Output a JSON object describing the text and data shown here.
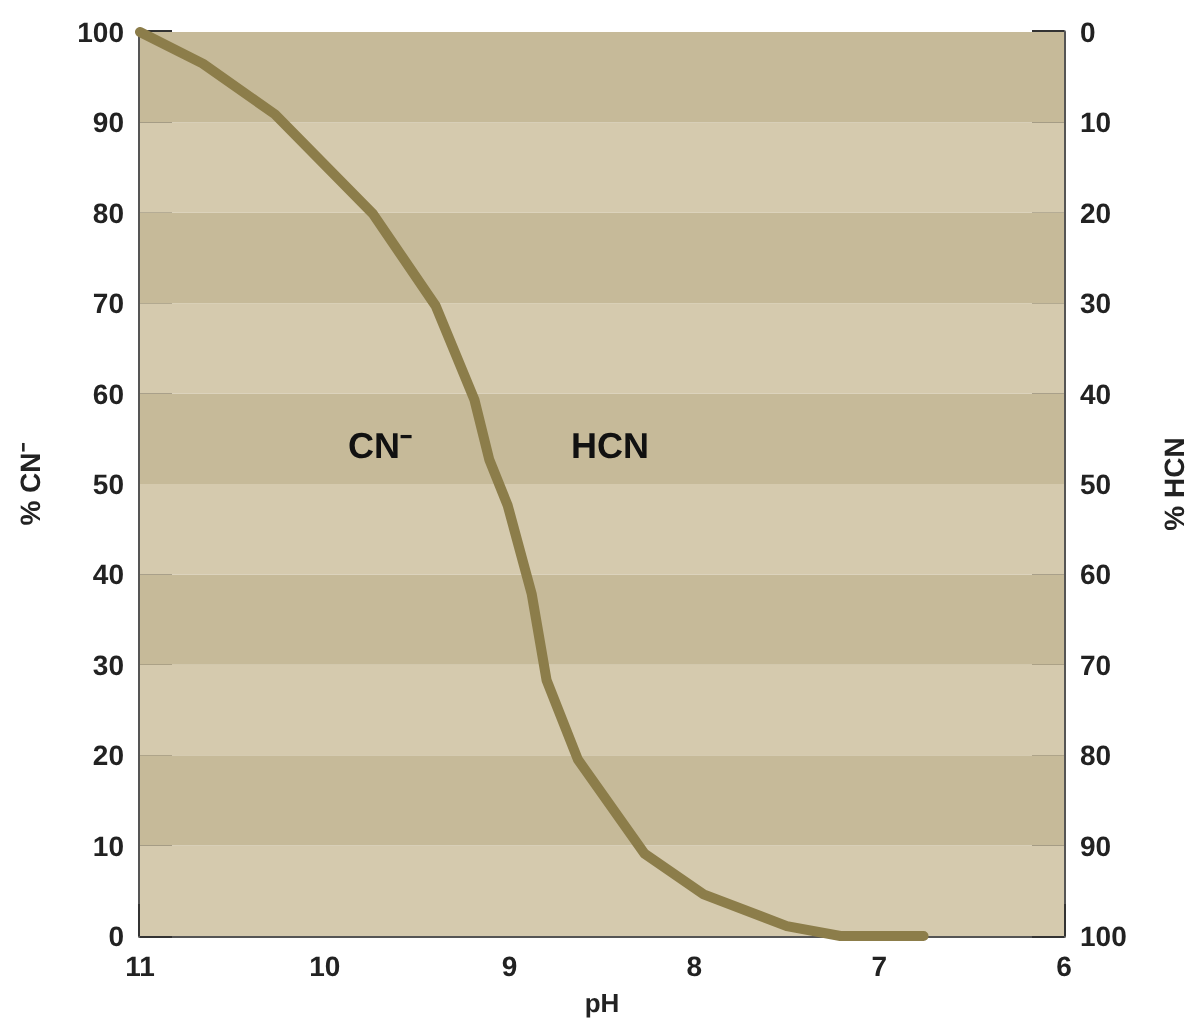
{
  "chart_data": {
    "type": "line",
    "xlabel": "pH",
    "ylabel": "% CN⁻",
    "y2label": "% HCN",
    "xlim": [
      11,
      6
    ],
    "xticks": [
      11,
      10,
      9,
      8,
      7,
      6
    ],
    "ylim": [
      0,
      100
    ],
    "yticks": [
      0,
      10,
      20,
      30,
      40,
      50,
      60,
      70,
      80,
      90,
      100
    ],
    "y2lim": [
      100,
      0
    ],
    "y2ticks": [
      100,
      90,
      80,
      70,
      60,
      50,
      40,
      30,
      20,
      10,
      0
    ],
    "marker": "none",
    "line_style": "solid",
    "annotations": [
      "CN⁻",
      "HCN"
    ],
    "bands": [
      {
        "axis": "y",
        "from": 0,
        "to": 10,
        "color": "#d5caae"
      },
      {
        "axis": "y",
        "from": 10,
        "to": 20,
        "color": "#c6ba99"
      },
      {
        "axis": "y",
        "from": 20,
        "to": 30,
        "color": "#d5caae"
      },
      {
        "axis": "y",
        "from": 30,
        "to": 40,
        "color": "#c6ba99"
      },
      {
        "axis": "y",
        "from": 40,
        "to": 50,
        "color": "#d5caae"
      },
      {
        "axis": "y",
        "from": 50,
        "to": 60,
        "color": "#c6ba99"
      },
      {
        "axis": "y",
        "from": 60,
        "to": 70,
        "color": "#d5caae"
      },
      {
        "axis": "y",
        "from": 70,
        "to": 80,
        "color": "#c6ba99"
      },
      {
        "axis": "y",
        "from": 80,
        "to": 90,
        "color": "#d5caae"
      },
      {
        "axis": "y",
        "from": 90,
        "to": 100,
        "color": "#c6ba99"
      }
    ],
    "series": [
      {
        "color": "#8c7d4a",
        "x": [
          11,
          10.66,
          10.27,
          9.74,
          9.4,
          9.19,
          9.11,
          9.01,
          8.88,
          8.8,
          8.63,
          8.27,
          7.95,
          7.5,
          7.21,
          6.76
        ],
        "values": [
          100,
          96.5,
          90.9,
          79.9,
          69.7,
          59.3,
          52.7,
          47.6,
          37.8,
          28.3,
          19.5,
          9.1,
          4.6,
          1.1,
          0,
          0
        ]
      }
    ]
  }
}
